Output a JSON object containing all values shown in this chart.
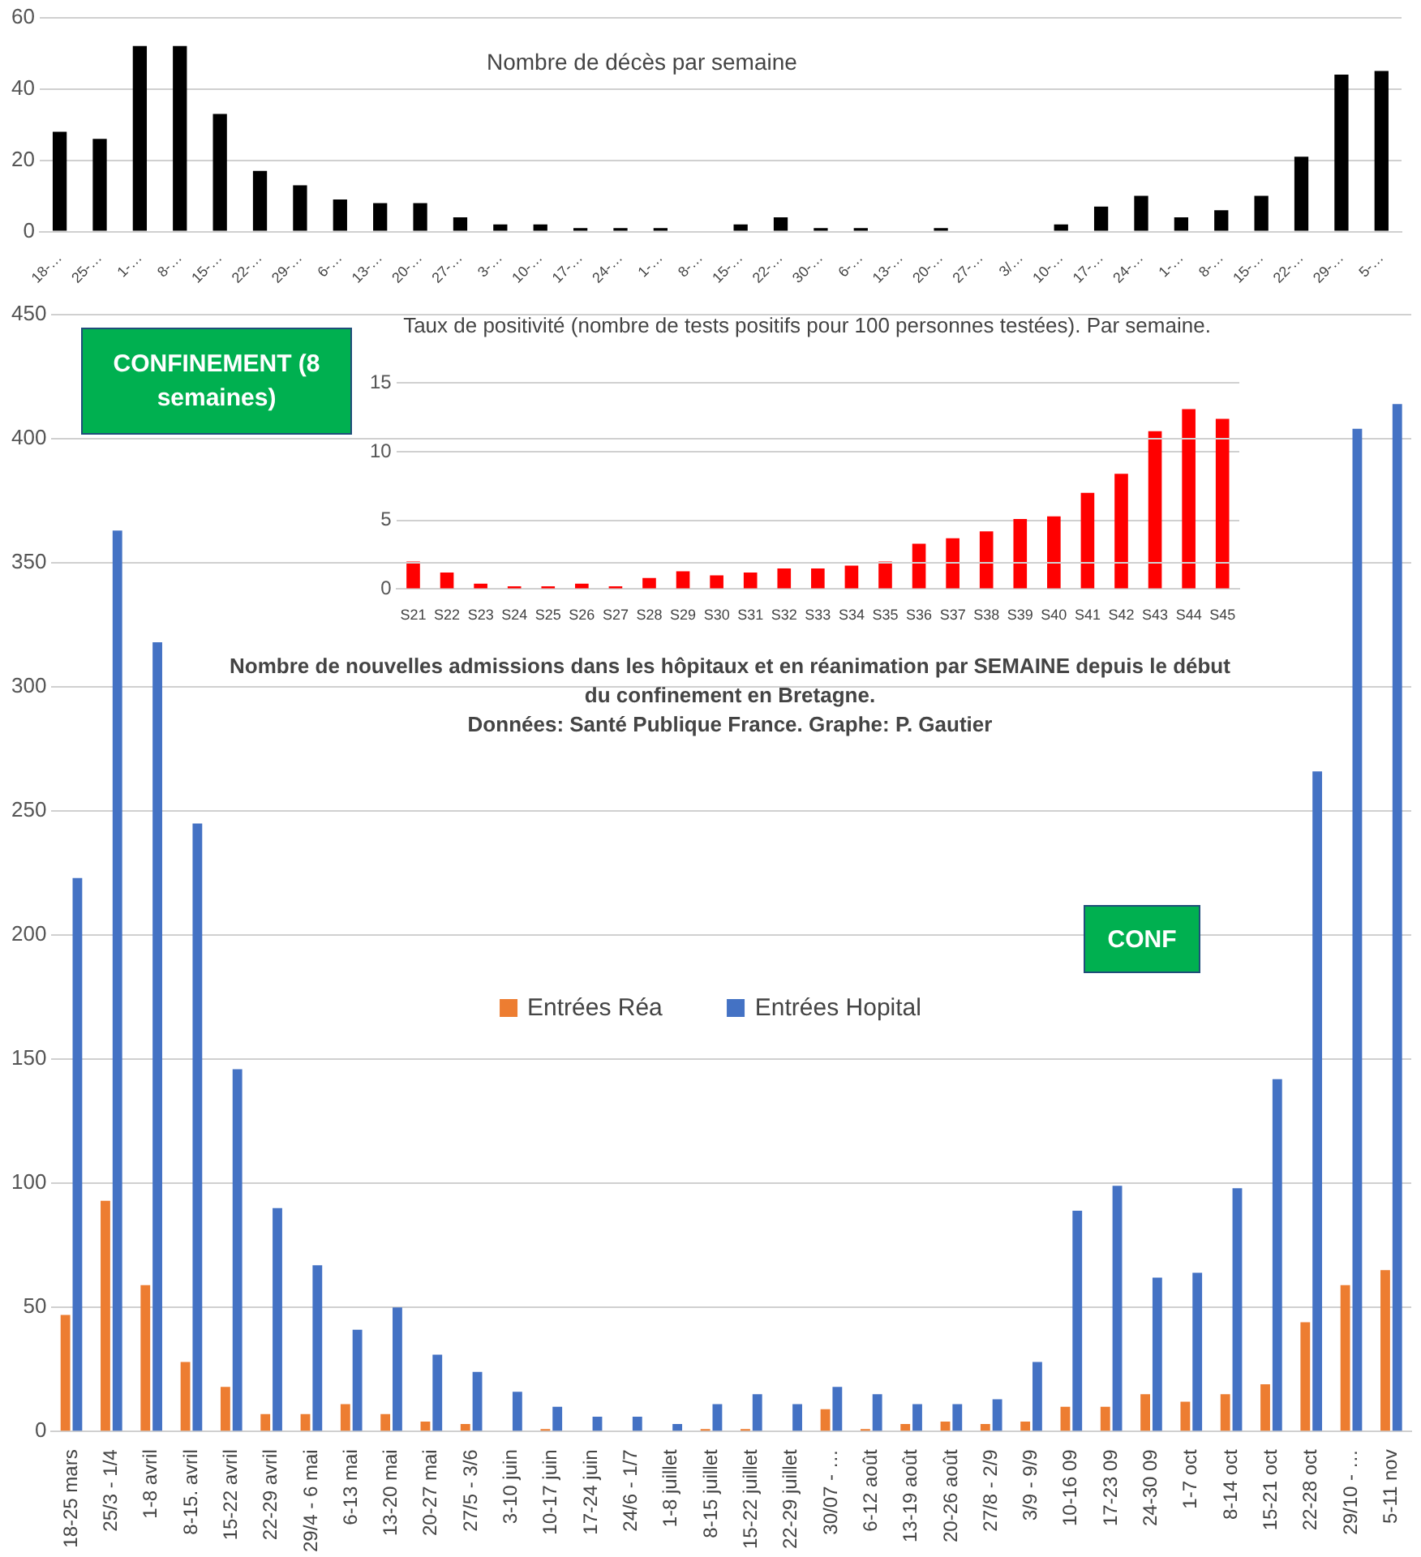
{
  "chart_data": [
    {
      "type": "bar",
      "title": "Nombre de décès par semaine",
      "categories": [
        "18-…",
        "25-…",
        "1-…",
        "8-…",
        "15-…",
        "22-…",
        "29-…",
        "6-…",
        "13-…",
        "20-…",
        "27-…",
        "3-…",
        "10-…",
        "17-…",
        "24-…",
        "1-…",
        "8-…",
        "15-…",
        "22-…",
        "30-…",
        "6-…",
        "13-…",
        "20-…",
        "27-…",
        "3/…",
        "10-…",
        "17-…",
        "24-…",
        "1-…",
        "8-…",
        "15-…",
        "22-…",
        "29-…",
        "5-…"
      ],
      "values": [
        28,
        26,
        52,
        52,
        33,
        17,
        13,
        9,
        8,
        8,
        4,
        2,
        2,
        1,
        1,
        1,
        0,
        2,
        4,
        1,
        1,
        0,
        1,
        0,
        0,
        2,
        7,
        10,
        4,
        6,
        10,
        21,
        44,
        45
      ],
      "color": "#000000",
      "ylim": [
        0,
        60
      ],
      "yticks": [
        0,
        20,
        40,
        60
      ],
      "grid": "y"
    },
    {
      "type": "bar",
      "title": "Taux de positivité (nombre de tests positifs pour 100 personnes testées). Par semaine.",
      "categories": [
        "S21",
        "S22",
        "S23",
        "S24",
        "S25",
        "S26",
        "S27",
        "S28",
        "S29",
        "S30",
        "S31",
        "S32",
        "S33",
        "S34",
        "S35",
        "S36",
        "S37",
        "S38",
        "S39",
        "S40",
        "S41",
        "S42",
        "S43",
        "S44",
        "S45"
      ],
      "values": [
        2.0,
        1.2,
        0.4,
        0.2,
        0.2,
        0.4,
        0.2,
        0.8,
        1.3,
        1.0,
        1.2,
        1.5,
        1.5,
        1.7,
        2.0,
        3.3,
        3.7,
        4.2,
        5.1,
        5.3,
        7.0,
        8.4,
        11.5,
        13.1,
        12.4
      ],
      "color": "#ff0000",
      "ylim": [
        0,
        15
      ],
      "yticks": [
        0,
        5,
        10,
        15
      ],
      "grid": "y"
    },
    {
      "type": "bar",
      "title": "Nombre de nouvelles admissions dans les hôpitaux et en réanimation par SEMAINE depuis le début du confinement en Bretagne.",
      "categories": [
        "18-25 mars",
        "25/3 - 1/4",
        "1-8 avril",
        "8-15. avril",
        "15-22 avril",
        "22-29 avril",
        "29/4 - 6 mai",
        "6-13 mai",
        "13-20 mai",
        "20-27 mai",
        "27/5 - 3/6",
        "3-10 juin",
        "10-17 juin",
        "17-24 juin",
        "24/6 - 1/7",
        "1-8 juillet",
        "8-15 juillet",
        "15-22 juillet",
        "22-29 juillet",
        "30/07 - …",
        "6-12 août",
        "13-19 août",
        "20-26 août",
        "27/8 - 2/9",
        "3/9 - 9/9",
        "10-16 09",
        "17-23 09",
        "24-30 09",
        "1-7 oct",
        "8-14 oct",
        "15-21 oct",
        "22-28 oct",
        "29/10 - …",
        "5-11 nov"
      ],
      "series": [
        {
          "name": "Entrées Réa",
          "color": "#ed7d31",
          "values": [
            47,
            93,
            59,
            28,
            18,
            7,
            7,
            11,
            7,
            4,
            3,
            0,
            1,
            0,
            0,
            0,
            1,
            1,
            0,
            9,
            1,
            3,
            4,
            3,
            4,
            10,
            10,
            15,
            12,
            15,
            19,
            44,
            59,
            65
          ]
        },
        {
          "name": "Entrées Hopital",
          "color": "#4472c4",
          "values": [
            223,
            363,
            318,
            245,
            146,
            90,
            67,
            41,
            50,
            31,
            24,
            16,
            10,
            6,
            6,
            3,
            11,
            15,
            11,
            18,
            15,
            11,
            11,
            13,
            28,
            89,
            99,
            62,
            64,
            98,
            142,
            266,
            404,
            414
          ]
        }
      ],
      "ylim": [
        0,
        450
      ],
      "yticks": [
        0,
        50,
        100,
        150,
        200,
        250,
        300,
        350,
        400,
        450
      ],
      "grid": "y",
      "legend": "center",
      "annotations": [
        "Données: Santé Publique France. Graphe: P. Gautier",
        "CONFINEMENT (8 semaines)",
        "CONF"
      ]
    }
  ]
}
